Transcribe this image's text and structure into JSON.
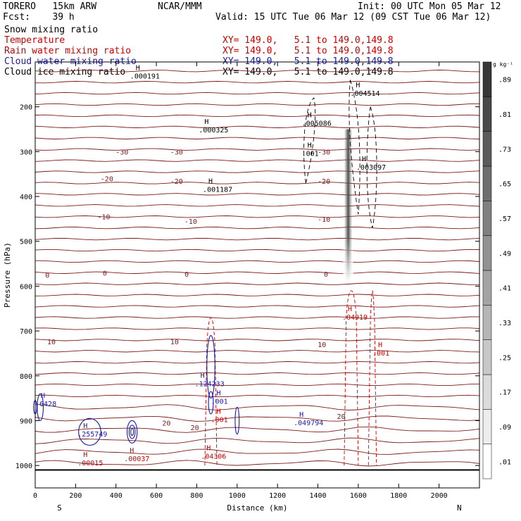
{
  "header": {
    "model": "TORERO   15km ARW",
    "org": "NCAR/MMM",
    "init": "Init: 00 UTC Mon 05 Mar 12",
    "fcst": "Fcst:    39 h",
    "valid": "Valid: 15 UTC Tue 06 Mar 12 (09 CST Tue 06 Mar 12)"
  },
  "fields": [
    {
      "name": "Snow mixing ratio",
      "color": "#000000",
      "xy": ""
    },
    {
      "name": "Temperature",
      "color": "#cc0000",
      "xy": "XY= 149.0,   5.1 to 149.0,149.8"
    },
    {
      "name": "Rain water mixing ratio",
      "color": "#cc0000",
      "xy": "XY= 149.0,   5.1 to 149.0,149.8"
    },
    {
      "name": "Cloud water mixing ratio",
      "color": "#1a1aaa",
      "xy": "XY= 149.0,   5.1 to 149.0,149.8"
    },
    {
      "name": "Cloud ice mixing ratio",
      "color": "#000000",
      "xy": "XY= 149.0,   5.1 to 149.0,149.8"
    }
  ],
  "chart_data": {
    "type": "contour",
    "xlabel": "Distance (km)",
    "ylabel": "Pressure (hPa)",
    "xlim": [
      0,
      2200
    ],
    "ylim": [
      1050,
      100
    ],
    "x_ticks": [
      "0",
      "200",
      "400",
      "600",
      "800",
      "1000",
      "1200",
      "1400",
      "1600",
      "1800",
      "2000"
    ],
    "x_tick_values": [
      0,
      200,
      400,
      600,
      800,
      1000,
      1200,
      1400,
      1600,
      1800,
      2000
    ],
    "y_ticks": [
      "200",
      "300",
      "400",
      "500",
      "600",
      "700",
      "800",
      "900",
      "1000"
    ],
    "y_tick_values": [
      200,
      300,
      400,
      500,
      600,
      700,
      800,
      900,
      1000
    ],
    "left_end": "S",
    "right_end": "N",
    "colorbar": {
      "unit": "g kg⁻¹",
      "labels": [
        ".01",
        ".09",
        ".17",
        ".25",
        ".33",
        ".41",
        ".49",
        ".57",
        ".65",
        ".73",
        ".81",
        ".89"
      ]
    },
    "temperature_labels": [
      {
        "text": "-30",
        "x": 430,
        "p": 300
      },
      {
        "text": "-30",
        "x": 700,
        "p": 300
      },
      {
        "text": "-30",
        "x": 1430,
        "p": 300
      },
      {
        "text": "-20",
        "x": 355,
        "p": 360
      },
      {
        "text": "-20",
        "x": 700,
        "p": 365
      },
      {
        "text": "-20",
        "x": 1430,
        "p": 365
      },
      {
        "text": "-10",
        "x": 340,
        "p": 445
      },
      {
        "text": "-10",
        "x": 770,
        "p": 455
      },
      {
        "text": "-10",
        "x": 1430,
        "p": 450
      },
      {
        "text": "0",
        "x": 60,
        "p": 575
      },
      {
        "text": "0",
        "x": 345,
        "p": 570
      },
      {
        "text": "0",
        "x": 750,
        "p": 573
      },
      {
        "text": "0",
        "x": 1440,
        "p": 573
      },
      {
        "text": "10",
        "x": 80,
        "p": 723
      },
      {
        "text": "10",
        "x": 690,
        "p": 723
      },
      {
        "text": "10",
        "x": 1420,
        "p": 730
      },
      {
        "text": "20",
        "x": 650,
        "p": 905
      },
      {
        "text": "20",
        "x": 790,
        "p": 915
      },
      {
        "text": "20",
        "x": 1515,
        "p": 890
      }
    ],
    "maxima": [
      {
        "text": ".000191",
        "x": 470,
        "p": 137,
        "color": "#000000"
      },
      {
        "text": ".000325",
        "x": 810,
        "p": 257,
        "color": "#000000"
      },
      {
        "text": ".005086",
        "x": 1320,
        "p": 242,
        "color": "#000000"
      },
      {
        "text": ".004514",
        "x": 1560,
        "p": 175,
        "color": "#000000"
      },
      {
        "text": ".001",
        "x": 1320,
        "p": 310,
        "color": "#000000"
      },
      {
        "text": ".003097",
        "x": 1590,
        "p": 340,
        "color": "#000000"
      },
      {
        "text": ".001187",
        "x": 830,
        "p": 390,
        "color": "#000000"
      },
      {
        "text": ".04919",
        "x": 1520,
        "p": 675,
        "color": "#cc0000"
      },
      {
        "text": ".001",
        "x": 1670,
        "p": 755,
        "color": "#cc0000"
      },
      {
        "text": ".124233",
        "x": 790,
        "p": 823,
        "color": "#1a1aaa"
      },
      {
        "text": ".001",
        "x": 870,
        "p": 862,
        "color": "#1a1aaa"
      },
      {
        "text": ".001",
        "x": 870,
        "p": 903,
        "color": "#cc0000"
      },
      {
        "text": ".6428",
        "x": 0,
        "p": 868,
        "color": "#1a1aaa"
      },
      {
        "text": ".255749",
        "x": 210,
        "p": 935,
        "color": "#1a1aaa"
      },
      {
        "text": ".049794",
        "x": 1280,
        "p": 910,
        "color": "#1a1aaa"
      },
      {
        "text": ".00015",
        "x": 210,
        "p": 1000,
        "color": "#cc0000"
      },
      {
        "text": ".00037",
        "x": 440,
        "p": 990,
        "color": "#cc0000"
      },
      {
        "text": ".04306",
        "x": 820,
        "p": 985,
        "color": "#cc0000"
      }
    ]
  }
}
